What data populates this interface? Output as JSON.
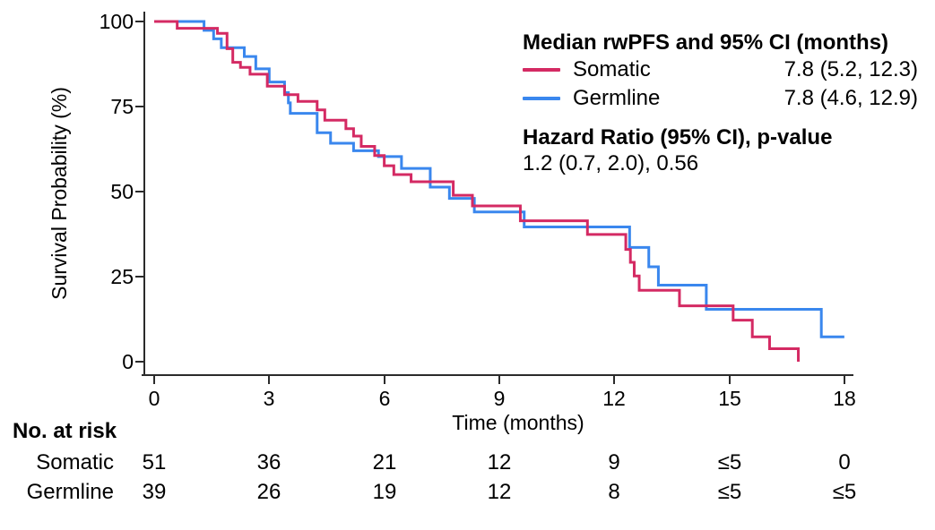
{
  "chart_data": {
    "type": "line",
    "subtype": "kaplan-meier-step",
    "title": "",
    "xlabel": "Time (months)",
    "ylabel": "Survival Probability (%)",
    "xlim": [
      0,
      18
    ],
    "ylim": [
      0,
      100
    ],
    "xticks": [
      "0",
      "3",
      "6",
      "9",
      "12",
      "15",
      "18"
    ],
    "yticks": [
      "0",
      "25",
      "50",
      "75",
      "100"
    ],
    "grid": false,
    "legend": {
      "position": "top-right",
      "title": "Median rwPFS and 95% CI (months)",
      "entries": [
        {
          "label": "Somatic",
          "value": "7.8 (5.2, 12.3)"
        },
        {
          "label": "Germline",
          "value": "7.8 (4.6, 12.9)"
        }
      ],
      "hazard_title": "Hazard Ratio (95% CI), p-value",
      "hazard_value": "1.2 (0.7, 2.0), 0.56"
    },
    "series": [
      {
        "name": "Somatic",
        "color": "#d42a63",
        "points": [
          [
            0,
            100
          ],
          [
            0.6,
            98
          ],
          [
            1.65,
            96.5
          ],
          [
            1.9,
            92
          ],
          [
            2.05,
            88
          ],
          [
            2.25,
            86.5
          ],
          [
            2.5,
            84.5
          ],
          [
            2.95,
            81
          ],
          [
            3.4,
            78.5
          ],
          [
            3.75,
            76.5
          ],
          [
            4.25,
            74
          ],
          [
            4.45,
            71
          ],
          [
            5.0,
            68.5
          ],
          [
            5.2,
            66.3
          ],
          [
            5.4,
            63.3
          ],
          [
            5.75,
            60.6
          ],
          [
            6.0,
            57.6
          ],
          [
            6.25,
            55
          ],
          [
            6.7,
            52.9
          ],
          [
            7.8,
            48.9
          ],
          [
            8.3,
            45.8
          ],
          [
            9.55,
            41.4
          ],
          [
            11.3,
            37.4
          ],
          [
            12.3,
            33
          ],
          [
            12.42,
            29.2
          ],
          [
            12.52,
            25.2
          ],
          [
            12.65,
            21
          ],
          [
            13.7,
            16.4
          ],
          [
            15.1,
            12.2
          ],
          [
            15.6,
            7.3
          ],
          [
            16.05,
            3.8
          ],
          [
            16.8,
            0
          ]
        ]
      },
      {
        "name": "Germline",
        "color": "#3a87ee",
        "points": [
          [
            0,
            100
          ],
          [
            1.3,
            97.4
          ],
          [
            1.55,
            94.9
          ],
          [
            1.75,
            92.3
          ],
          [
            2.35,
            89.7
          ],
          [
            2.65,
            86.1
          ],
          [
            3.0,
            82.2
          ],
          [
            3.4,
            79.1
          ],
          [
            3.5,
            76.1
          ],
          [
            3.55,
            73
          ],
          [
            4.25,
            67.3
          ],
          [
            4.6,
            64.2
          ],
          [
            5.2,
            62
          ],
          [
            5.85,
            60.3
          ],
          [
            6.45,
            56.8
          ],
          [
            7.2,
            51.3
          ],
          [
            7.7,
            48
          ],
          [
            8.35,
            44
          ],
          [
            9.65,
            39.6
          ],
          [
            12.4,
            33.6
          ],
          [
            12.9,
            27.9
          ],
          [
            13.15,
            22.5
          ],
          [
            14.4,
            15.4
          ],
          [
            17.4,
            7.3
          ],
          [
            18,
            7.3
          ]
        ]
      }
    ],
    "risk_table": {
      "title": "No. at risk",
      "time_points": [
        "0",
        "3",
        "6",
        "9",
        "12",
        "15",
        "18"
      ],
      "rows": [
        {
          "label": "Somatic",
          "values": [
            "51",
            "36",
            "21",
            "12",
            "9",
            "≤5",
            "0"
          ]
        },
        {
          "label": "Germline",
          "values": [
            "39",
            "26",
            "19",
            "12",
            "8",
            "≤5",
            "≤5"
          ]
        }
      ]
    }
  }
}
